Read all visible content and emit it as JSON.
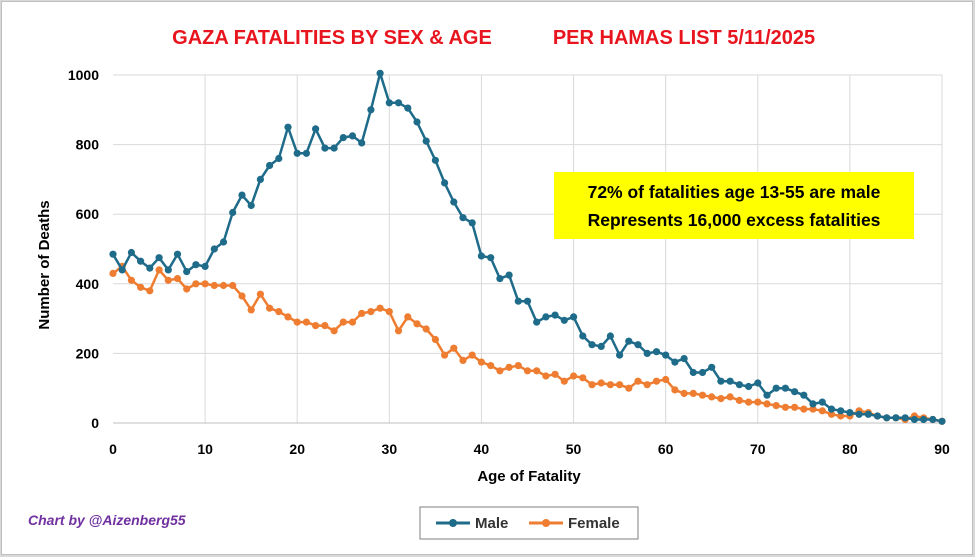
{
  "colors": {
    "male": "#1f6b8a",
    "female": "#ee7d31",
    "title": "#e8141e",
    "credit": "#7030a0",
    "annotation_bg": "#ffff00",
    "grid": "#d9d9d9"
  },
  "chart_data": {
    "type": "line",
    "title": "GAZA FATALITIES BY SEX & AGE",
    "subtitle": "PER HAMAS LIST 5/11/2025",
    "xlabel": "Age of Fatality",
    "ylabel": "Number of Deaths",
    "xlim": [
      0,
      90
    ],
    "ylim": [
      0,
      1000
    ],
    "xticks": [
      0,
      10,
      20,
      30,
      40,
      50,
      60,
      70,
      80,
      90
    ],
    "yticks": [
      0,
      200,
      400,
      600,
      800,
      1000
    ],
    "grid": true,
    "legend_position": "bottom",
    "annotation": [
      "72% of fatalities age 13-55 are male",
      "Represents 16,000 excess fatalities"
    ],
    "credit": "Chart by @Aizenberg55",
    "x": [
      0,
      1,
      2,
      3,
      4,
      5,
      6,
      7,
      8,
      9,
      10,
      11,
      12,
      13,
      14,
      15,
      16,
      17,
      18,
      19,
      20,
      21,
      22,
      23,
      24,
      25,
      26,
      27,
      28,
      29,
      30,
      31,
      32,
      33,
      34,
      35,
      36,
      37,
      38,
      39,
      40,
      41,
      42,
      43,
      44,
      45,
      46,
      47,
      48,
      49,
      50,
      51,
      52,
      53,
      54,
      55,
      56,
      57,
      58,
      59,
      60,
      61,
      62,
      63,
      64,
      65,
      66,
      67,
      68,
      69,
      70,
      71,
      72,
      73,
      74,
      75,
      76,
      77,
      78,
      79,
      80,
      81,
      82,
      83,
      84,
      85,
      86,
      87,
      88,
      89,
      90
    ],
    "series": [
      {
        "name": "Male",
        "values": [
          485,
          440,
          490,
          465,
          445,
          475,
          440,
          485,
          435,
          455,
          450,
          500,
          520,
          605,
          655,
          625,
          700,
          740,
          760,
          850,
          775,
          775,
          845,
          790,
          790,
          820,
          825,
          805,
          900,
          1005,
          920,
          920,
          905,
          865,
          810,
          755,
          690,
          635,
          590,
          575,
          480,
          475,
          415,
          425,
          350,
          350,
          290,
          305,
          310,
          295,
          305,
          250,
          225,
          220,
          250,
          195,
          235,
          225,
          200,
          205,
          195,
          175,
          185,
          145,
          145,
          160,
          120,
          120,
          110,
          105,
          115,
          80,
          100,
          100,
          90,
          80,
          55,
          60,
          40,
          35,
          30,
          25,
          25,
          20,
          15,
          15,
          15,
          10,
          10,
          10,
          5
        ]
      },
      {
        "name": "Female",
        "values": [
          430,
          450,
          410,
          390,
          380,
          440,
          410,
          415,
          385,
          400,
          400,
          395,
          395,
          395,
          365,
          325,
          370,
          330,
          320,
          305,
          290,
          290,
          280,
          280,
          265,
          290,
          290,
          315,
          320,
          330,
          320,
          265,
          305,
          285,
          270,
          240,
          195,
          215,
          180,
          195,
          175,
          165,
          150,
          160,
          165,
          150,
          150,
          135,
          140,
          120,
          135,
          130,
          110,
          115,
          110,
          110,
          100,
          120,
          110,
          120,
          125,
          95,
          85,
          85,
          80,
          75,
          70,
          75,
          65,
          60,
          60,
          55,
          50,
          45,
          45,
          40,
          40,
          35,
          25,
          20,
          20,
          35,
          30,
          20,
          15,
          15,
          10,
          20,
          15,
          10,
          5
        ]
      }
    ]
  }
}
